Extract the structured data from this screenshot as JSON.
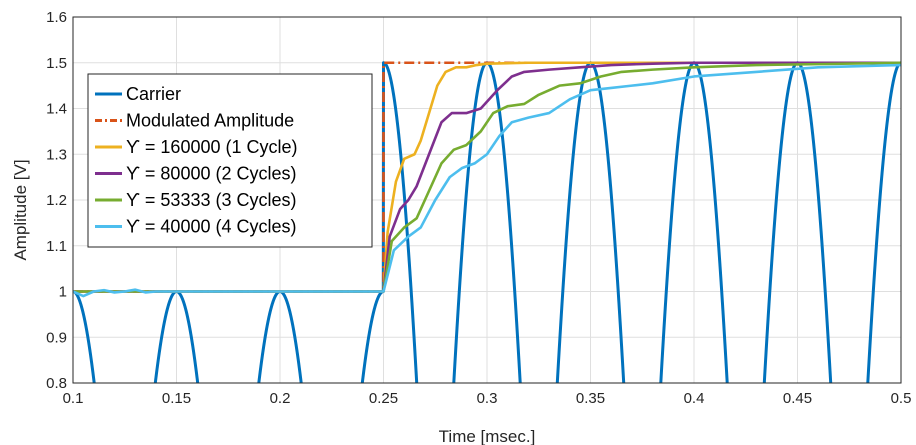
{
  "chart_data": {
    "type": "line",
    "title": "",
    "xlabel": "Time [msec.]",
    "ylabel": "Amplitude [V]",
    "xlim": [
      0.1,
      0.5
    ],
    "ylim": [
      0.8,
      1.6
    ],
    "xticks": [
      "0.1",
      "0.15",
      "0.2",
      "0.25",
      "0.3",
      "0.35",
      "0.4",
      "0.45",
      "0.5"
    ],
    "yticks": [
      "0.8",
      "0.9",
      "1",
      "1.1",
      "1.2",
      "1.3",
      "1.4",
      "1.5",
      "1.6"
    ],
    "grid": true,
    "legend_position": "inside-left",
    "series": [
      {
        "name": "Carrier",
        "color": "#0072BD",
        "style": "solid",
        "description": "Rectified sinusoid, period 0.05 msec; peaks of 1 before 0.25 msec and 1.5 after",
        "peaks": [
          {
            "x": 0.1,
            "y": 1.0
          },
          {
            "x": 0.15,
            "y": 1.0
          },
          {
            "x": 0.2,
            "y": 1.0
          },
          {
            "x": 0.25,
            "y": 1.5
          },
          {
            "x": 0.3,
            "y": 1.5
          },
          {
            "x": 0.35,
            "y": 1.5
          },
          {
            "x": 0.4,
            "y": 1.5
          },
          {
            "x": 0.45,
            "y": 1.5
          },
          {
            "x": 0.5,
            "y": 1.5
          }
        ]
      },
      {
        "name": "Modulated Amplitude",
        "color": "#D95319",
        "style": "dashdot",
        "x": [
          0.1,
          0.25,
          0.25,
          0.5
        ],
        "y": [
          1.0,
          1.0,
          1.5,
          1.5
        ]
      },
      {
        "name": "ϒ = 160000 (1 Cycle)",
        "color": "#EDB120",
        "style": "solid",
        "x": [
          0.1,
          0.25,
          0.252,
          0.256,
          0.26,
          0.265,
          0.268,
          0.272,
          0.276,
          0.28,
          0.285,
          0.29,
          0.295,
          0.3,
          0.32,
          0.35,
          0.4,
          0.5
        ],
        "y": [
          1.0,
          1.0,
          1.13,
          1.24,
          1.29,
          1.3,
          1.33,
          1.39,
          1.45,
          1.48,
          1.49,
          1.49,
          1.495,
          1.498,
          1.5,
          1.5,
          1.5,
          1.5
        ]
      },
      {
        "name": "ϒ = 80000 (2 Cycles)",
        "color": "#7E2F8E",
        "style": "solid",
        "x": [
          0.1,
          0.25,
          0.253,
          0.258,
          0.262,
          0.266,
          0.272,
          0.278,
          0.283,
          0.29,
          0.297,
          0.305,
          0.312,
          0.318,
          0.33,
          0.345,
          0.36,
          0.38,
          0.4,
          0.5
        ],
        "y": [
          1.0,
          1.0,
          1.12,
          1.18,
          1.2,
          1.23,
          1.3,
          1.37,
          1.39,
          1.39,
          1.4,
          1.44,
          1.47,
          1.48,
          1.485,
          1.49,
          1.495,
          1.498,
          1.5,
          1.5
        ]
      },
      {
        "name": "ϒ = 53333 (3 Cycles)",
        "color": "#77AC30",
        "style": "solid",
        "x": [
          0.1,
          0.25,
          0.254,
          0.26,
          0.266,
          0.272,
          0.278,
          0.284,
          0.29,
          0.297,
          0.303,
          0.31,
          0.318,
          0.325,
          0.335,
          0.345,
          0.355,
          0.365,
          0.38,
          0.4,
          0.43,
          0.46,
          0.5
        ],
        "y": [
          1.0,
          1.0,
          1.11,
          1.14,
          1.16,
          1.22,
          1.28,
          1.31,
          1.32,
          1.35,
          1.39,
          1.405,
          1.41,
          1.43,
          1.45,
          1.455,
          1.47,
          1.48,
          1.485,
          1.49,
          1.495,
          1.497,
          1.5
        ]
      },
      {
        "name": "ϒ = 40000 (4 Cycles)",
        "color": "#4DBEEE",
        "style": "solid",
        "x": [
          0.1,
          0.105,
          0.11,
          0.115,
          0.12,
          0.125,
          0.13,
          0.135,
          0.14,
          0.25,
          0.255,
          0.262,
          0.268,
          0.275,
          0.282,
          0.288,
          0.294,
          0.3,
          0.306,
          0.312,
          0.32,
          0.33,
          0.34,
          0.35,
          0.36,
          0.37,
          0.38,
          0.4,
          0.43,
          0.46,
          0.5
        ],
        "y": [
          1.0,
          0.99,
          1.0,
          1.003,
          0.998,
          1.0,
          1.004,
          0.998,
          1.0,
          1.0,
          1.09,
          1.12,
          1.14,
          1.2,
          1.25,
          1.27,
          1.28,
          1.3,
          1.34,
          1.37,
          1.38,
          1.39,
          1.42,
          1.44,
          1.445,
          1.45,
          1.455,
          1.47,
          1.48,
          1.49,
          1.495
        ]
      }
    ]
  }
}
